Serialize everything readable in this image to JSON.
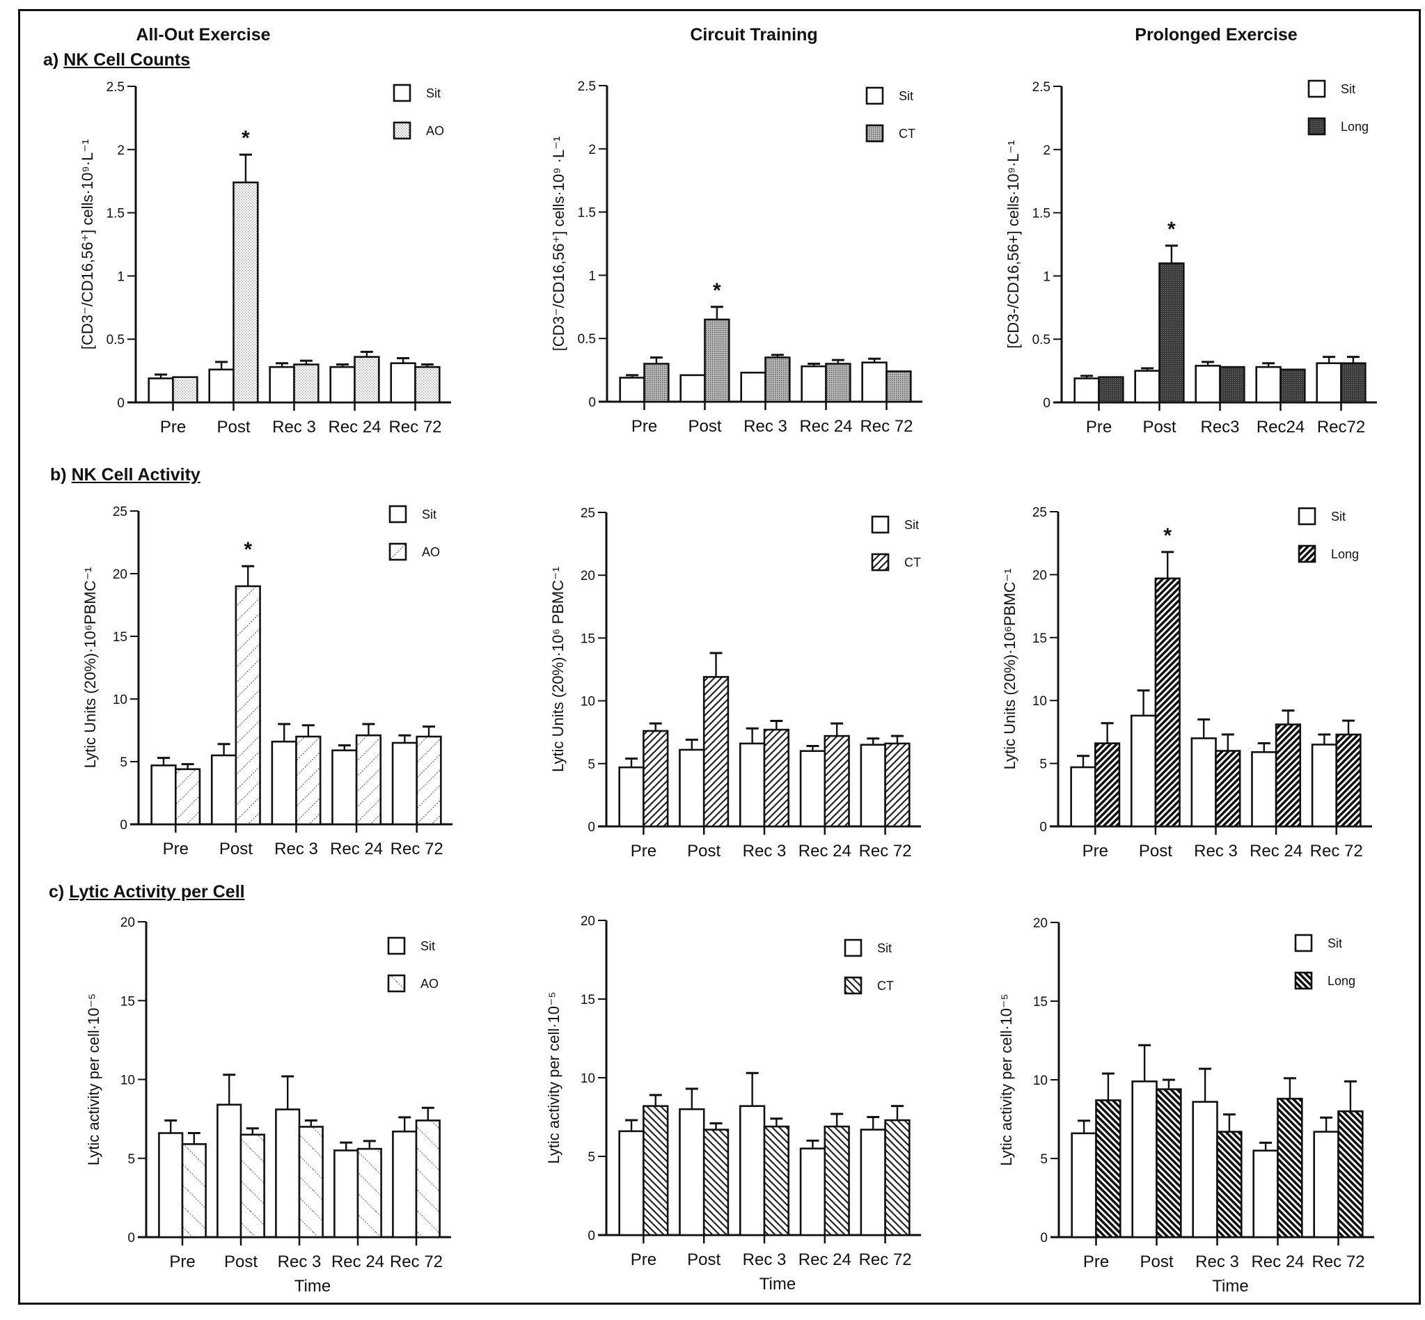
{
  "figure": {
    "column_titles": [
      "All-Out Exercise",
      "Circuit Training",
      "Prolonged Exercise"
    ],
    "row_titles": [
      {
        "prefix": "a)",
        "label": "NK Cell Counts"
      },
      {
        "prefix": "b)",
        "label": "NK Cell Activity"
      },
      {
        "prefix": "c)",
        "label": "Lytic Activity per Cell"
      }
    ]
  },
  "chart_data": [
    {
      "id": "a-AO",
      "type": "bar",
      "row": 0,
      "col": 0,
      "ylabel": "[CD3⁻/CD16,56⁺] cells·10⁹·L⁻¹",
      "xlabel": "",
      "ylim": [
        0,
        2.5
      ],
      "yticks": [
        "0",
        "0.5",
        "1",
        "1.5",
        "2",
        "2.5"
      ],
      "ytick_values": [
        0,
        0.5,
        1,
        1.5,
        2,
        2.5
      ],
      "categories": [
        "Pre",
        "Post",
        "Rec 3",
        "Rec 24",
        "Rec 72"
      ],
      "legend": "top-right",
      "series": [
        {
          "name": "Sit",
          "pattern": "white",
          "values": [
            0.19,
            0.26,
            0.28,
            0.28,
            0.31
          ],
          "errors": [
            0.03,
            0.06,
            0.03,
            0.02,
            0.04
          ]
        },
        {
          "name": "AO",
          "pattern": "dots-light",
          "values": [
            0.2,
            1.74,
            0.3,
            0.36,
            0.28
          ],
          "errors": [
            0.0,
            0.22,
            0.03,
            0.04,
            0.02
          ]
        }
      ],
      "significance": [
        {
          "category": "Post",
          "series": 1,
          "mark": "*"
        }
      ]
    },
    {
      "id": "a-CT",
      "type": "bar",
      "row": 0,
      "col": 1,
      "ylabel": "[CD3⁻/CD16,56⁺] cells·10⁹ ·L⁻¹",
      "xlabel": "",
      "ylim": [
        0,
        2.5
      ],
      "yticks": [
        "0",
        "0.5",
        "1",
        "1.5",
        "2",
        "2.5"
      ],
      "ytick_values": [
        0,
        0.5,
        1,
        1.5,
        2,
        2.5
      ],
      "categories": [
        "Pre",
        "Post",
        "Rec 3",
        "Rec 24",
        "Rec 72"
      ],
      "legend": "top-right",
      "series": [
        {
          "name": "Sit",
          "pattern": "white",
          "values": [
            0.19,
            0.21,
            0.23,
            0.28,
            0.31
          ],
          "errors": [
            0.02,
            0.0,
            0.0,
            0.02,
            0.03
          ]
        },
        {
          "name": "CT",
          "pattern": "dots-medium",
          "values": [
            0.3,
            0.65,
            0.35,
            0.3,
            0.24
          ],
          "errors": [
            0.05,
            0.1,
            0.02,
            0.03,
            0.0
          ]
        }
      ],
      "significance": [
        {
          "category": "Post",
          "series": 1,
          "mark": "*"
        }
      ]
    },
    {
      "id": "a-Long",
      "type": "bar",
      "row": 0,
      "col": 2,
      "ylabel": "[CD3-/CD16,56+] cells·10⁹·L⁻¹",
      "xlabel": "",
      "ylim": [
        0,
        2.5
      ],
      "yticks": [
        "0",
        "0.5",
        "1",
        "1.5",
        "2",
        "2.5"
      ],
      "ytick_values": [
        0,
        0.5,
        1,
        1.5,
        2,
        2.5
      ],
      "categories": [
        "Pre",
        "Post",
        "Rec3",
        "Rec24",
        "Rec72"
      ],
      "legend": "top-right",
      "series": [
        {
          "name": "Sit",
          "pattern": "white",
          "values": [
            0.19,
            0.25,
            0.29,
            0.28,
            0.31
          ],
          "errors": [
            0.02,
            0.02,
            0.03,
            0.03,
            0.05
          ]
        },
        {
          "name": "Long",
          "pattern": "dots-dark",
          "values": [
            0.2,
            1.1,
            0.28,
            0.26,
            0.31
          ],
          "errors": [
            0.0,
            0.14,
            0.0,
            0.0,
            0.05
          ]
        }
      ],
      "significance": [
        {
          "category": "Post",
          "series": 1,
          "mark": "*"
        }
      ]
    },
    {
      "id": "b-AO",
      "type": "bar",
      "row": 1,
      "col": 0,
      "ylabel": "Lytic Units (20%)·10⁶PBMC⁻¹",
      "xlabel": "",
      "ylim": [
        0,
        25
      ],
      "yticks": [
        "0",
        "5",
        "10",
        "15",
        "20",
        "25"
      ],
      "ytick_values": [
        0,
        5,
        10,
        15,
        20,
        25
      ],
      "categories": [
        "Pre",
        "Post",
        "Rec 3",
        "Rec 24",
        "Rec 72"
      ],
      "legend": "top-right",
      "series": [
        {
          "name": "Sit",
          "pattern": "white",
          "values": [
            4.7,
            5.5,
            6.6,
            5.9,
            6.5
          ],
          "errors": [
            0.6,
            0.9,
            1.4,
            0.4,
            0.6
          ]
        },
        {
          "name": "AO",
          "pattern": "hatch-up-light",
          "values": [
            4.4,
            19.0,
            7.0,
            7.1,
            7.0
          ],
          "errors": [
            0.4,
            1.6,
            0.9,
            0.9,
            0.8
          ]
        }
      ],
      "significance": [
        {
          "category": "Post",
          "series": 1,
          "mark": "*"
        }
      ]
    },
    {
      "id": "b-CT",
      "type": "bar",
      "row": 1,
      "col": 1,
      "ylabel": "Lytic Units (20%)·10⁶ PBMC⁻¹",
      "xlabel": "",
      "ylim": [
        0,
        25
      ],
      "yticks": [
        "0",
        "5",
        "10",
        "15",
        "20",
        "25"
      ],
      "ytick_values": [
        0,
        5,
        10,
        15,
        20,
        25
      ],
      "categories": [
        "Pre",
        "Post",
        "Rec 3",
        "Rec 24",
        "Rec 72"
      ],
      "legend": "top-right",
      "series": [
        {
          "name": "Sit",
          "pattern": "white",
          "values": [
            4.7,
            6.1,
            6.6,
            6.0,
            6.5
          ],
          "errors": [
            0.7,
            0.8,
            1.2,
            0.4,
            0.5
          ]
        },
        {
          "name": "CT",
          "pattern": "hatch-up-medium",
          "values": [
            7.6,
            11.9,
            7.7,
            7.2,
            6.6
          ],
          "errors": [
            0.6,
            1.9,
            0.7,
            1.0,
            0.6
          ]
        }
      ],
      "significance": []
    },
    {
      "id": "b-Long",
      "type": "bar",
      "row": 1,
      "col": 2,
      "ylabel": "Lytic Units (20%)·10⁶PBMC⁻¹",
      "xlabel": "",
      "ylim": [
        0,
        25
      ],
      "yticks": [
        "0",
        "5",
        "10",
        "15",
        "20",
        "25"
      ],
      "ytick_values": [
        0,
        5,
        10,
        15,
        20,
        25
      ],
      "categories": [
        "Pre",
        "Post",
        "Rec 3",
        "Rec 24",
        "Rec 72"
      ],
      "legend": "top-right",
      "series": [
        {
          "name": "Sit",
          "pattern": "white",
          "values": [
            4.7,
            8.8,
            7.0,
            5.9,
            6.5
          ],
          "errors": [
            0.9,
            2.0,
            1.5,
            0.7,
            0.8
          ]
        },
        {
          "name": "Long",
          "pattern": "hatch-up-dark",
          "values": [
            6.6,
            19.7,
            6.0,
            8.1,
            7.3
          ],
          "errors": [
            1.6,
            2.1,
            1.3,
            1.1,
            1.1
          ]
        }
      ],
      "significance": [
        {
          "category": "Post",
          "series": 1,
          "mark": "*"
        }
      ]
    },
    {
      "id": "c-AO",
      "type": "bar",
      "row": 2,
      "col": 0,
      "ylabel": "Lytic activity per cell·10⁻⁵",
      "xlabel": "Time",
      "ylim": [
        0,
        20
      ],
      "yticks": [
        "0",
        "5",
        "10",
        "15",
        "20"
      ],
      "ytick_values": [
        0,
        5,
        10,
        15,
        20
      ],
      "categories": [
        "Pre",
        "Post",
        "Rec 3",
        "Rec 24",
        "Rec 72"
      ],
      "legend": "top-right",
      "series": [
        {
          "name": "Sit",
          "pattern": "white",
          "values": [
            6.6,
            8.4,
            8.1,
            5.5,
            6.7
          ],
          "errors": [
            0.8,
            1.9,
            2.1,
            0.5,
            0.9
          ]
        },
        {
          "name": "AO",
          "pattern": "hatch-down-light",
          "values": [
            5.9,
            6.5,
            7.0,
            5.6,
            7.4
          ],
          "errors": [
            0.7,
            0.4,
            0.4,
            0.5,
            0.8
          ]
        }
      ],
      "significance": []
    },
    {
      "id": "c-CT",
      "type": "bar",
      "row": 2,
      "col": 1,
      "ylabel": "Lytic activity per cell·10⁻⁵",
      "xlabel": "Time",
      "ylim": [
        0,
        20
      ],
      "yticks": [
        "0",
        "5",
        "10",
        "15",
        "20"
      ],
      "ytick_values": [
        0,
        5,
        10,
        15,
        20
      ],
      "categories": [
        "Pre",
        "Post",
        "Rec 3",
        "Rec 24",
        "Rec 72"
      ],
      "legend": "top-right",
      "series": [
        {
          "name": "Sit",
          "pattern": "white",
          "values": [
            6.6,
            8.0,
            8.2,
            5.5,
            6.7
          ],
          "errors": [
            0.7,
            1.3,
            2.1,
            0.5,
            0.8
          ]
        },
        {
          "name": "CT",
          "pattern": "hatch-down-medium",
          "values": [
            8.2,
            6.7,
            6.9,
            6.9,
            7.3
          ],
          "errors": [
            0.7,
            0.4,
            0.5,
            0.8,
            0.9
          ]
        }
      ],
      "significance": []
    },
    {
      "id": "c-Long",
      "type": "bar",
      "row": 2,
      "col": 2,
      "ylabel": "Lytic activity per cell·10⁻⁵",
      "xlabel": "Time",
      "ylim": [
        0,
        20
      ],
      "yticks": [
        "0",
        "5",
        "10",
        "15",
        "20"
      ],
      "ytick_values": [
        0,
        5,
        10,
        15,
        20
      ],
      "categories": [
        "Pre",
        "Post",
        "Rec 3",
        "Rec 24",
        "Rec 72"
      ],
      "legend": "top-right",
      "series": [
        {
          "name": "Sit",
          "pattern": "white",
          "values": [
            6.6,
            9.9,
            8.6,
            5.5,
            6.7
          ],
          "errors": [
            0.8,
            2.3,
            2.1,
            0.5,
            0.9
          ]
        },
        {
          "name": "Long",
          "pattern": "hatch-down-dark",
          "values": [
            8.7,
            9.4,
            6.7,
            8.8,
            8.0
          ],
          "errors": [
            1.7,
            0.6,
            1.1,
            1.3,
            1.9
          ]
        }
      ],
      "significance": []
    }
  ]
}
